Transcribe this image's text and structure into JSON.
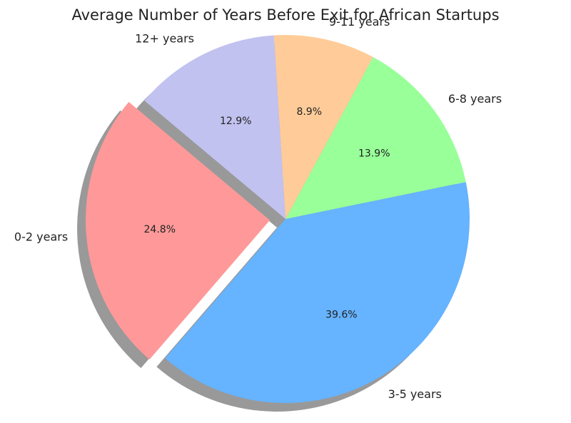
{
  "chart_data": {
    "type": "pie",
    "title": "Average Number of Years Before Exit for African Startups",
    "categories": [
      "0-2 years",
      "3-5 years",
      "6-8 years",
      "9-11 years",
      "12+ years"
    ],
    "values": [
      24.8,
      39.6,
      13.9,
      8.9,
      12.9
    ],
    "percent_labels": [
      "24.8%",
      "39.6%",
      "13.9%",
      "8.9%",
      "12.9%"
    ],
    "colors": [
      "#ff9999",
      "#66b3ff",
      "#99ff99",
      "#ffcc99",
      "#c2c2f0"
    ],
    "exploded": [
      true,
      false,
      false,
      false,
      false
    ],
    "shadow": true,
    "start_angle": 140,
    "legend": "none"
  }
}
